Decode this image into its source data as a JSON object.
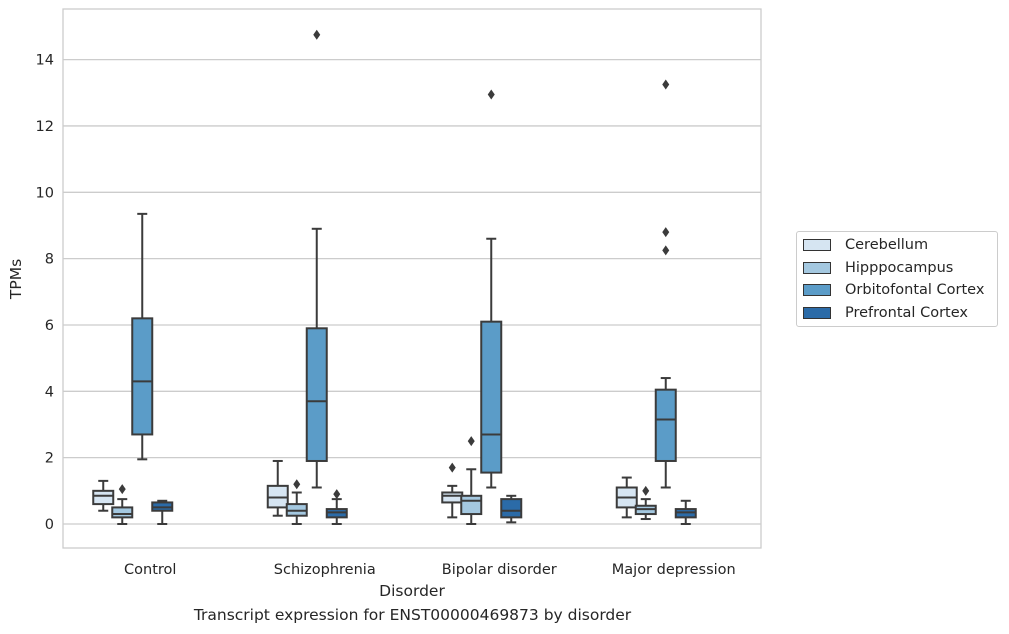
{
  "caption": "Transcript expression for ENST00000469873 by disorder",
  "chart_data": {
    "type": "box",
    "xlabel": "Disorder",
    "ylabel": "TPMs",
    "ylim": [
      -0.7,
      15.5
    ],
    "yticks": [
      0,
      2,
      4,
      6,
      8,
      10,
      12,
      14
    ],
    "grid": "horizontal",
    "legend_position": "right",
    "categories": [
      "Control",
      "Schizophrenia",
      "Bipolar disorder",
      "Major depression"
    ],
    "series": [
      {
        "name": "Cerebellum",
        "color": "#d6e5f2",
        "boxes": [
          {
            "min": 0.4,
            "q1": 0.6,
            "median": 0.85,
            "q3": 1.0,
            "max": 1.3,
            "outliers": []
          },
          {
            "min": 0.25,
            "q1": 0.5,
            "median": 0.8,
            "q3": 1.15,
            "max": 1.9,
            "outliers": []
          },
          {
            "min": 0.2,
            "q1": 0.65,
            "median": 0.85,
            "q3": 0.95,
            "max": 1.15,
            "outliers": [
              1.7
            ]
          },
          {
            "min": 0.2,
            "q1": 0.5,
            "median": 0.8,
            "q3": 1.1,
            "max": 1.4,
            "outliers": []
          }
        ]
      },
      {
        "name": "Hipppocampus",
        "color": "#a4c8e0",
        "boxes": [
          {
            "min": 0.0,
            "q1": 0.2,
            "median": 0.3,
            "q3": 0.5,
            "max": 0.75,
            "outliers": [
              1.05
            ]
          },
          {
            "min": 0.0,
            "q1": 0.25,
            "median": 0.4,
            "q3": 0.6,
            "max": 0.95,
            "outliers": [
              1.2
            ]
          },
          {
            "min": 0.0,
            "q1": 0.3,
            "median": 0.7,
            "q3": 0.85,
            "max": 1.65,
            "outliers": [
              2.5
            ]
          },
          {
            "min": 0.15,
            "q1": 0.3,
            "median": 0.45,
            "q3": 0.55,
            "max": 0.75,
            "outliers": [
              1.0
            ]
          }
        ]
      },
      {
        "name": "Orbitofontal Cortex",
        "color": "#5b9cc8",
        "boxes": [
          {
            "min": 1.95,
            "q1": 2.7,
            "median": 4.3,
            "q3": 6.2,
            "max": 9.35,
            "outliers": []
          },
          {
            "min": 1.1,
            "q1": 1.9,
            "median": 3.7,
            "q3": 5.9,
            "max": 8.9,
            "outliers": [
              14.75
            ]
          },
          {
            "min": 1.1,
            "q1": 1.55,
            "median": 2.7,
            "q3": 6.1,
            "max": 8.6,
            "outliers": [
              12.95
            ]
          },
          {
            "min": 1.1,
            "q1": 1.9,
            "median": 3.15,
            "q3": 4.05,
            "max": 4.4,
            "outliers": [
              8.8,
              8.25,
              13.25
            ]
          }
        ]
      },
      {
        "name": "Prefrontal Cortex",
        "color": "#2b6ba8",
        "boxes": [
          {
            "min": 0.0,
            "q1": 0.4,
            "median": 0.5,
            "q3": 0.65,
            "max": 0.7,
            "outliers": []
          },
          {
            "min": 0.0,
            "q1": 0.2,
            "median": 0.35,
            "q3": 0.45,
            "max": 0.75,
            "outliers": [
              0.9
            ]
          },
          {
            "min": 0.05,
            "q1": 0.2,
            "median": 0.4,
            "q3": 0.75,
            "max": 0.85,
            "outliers": []
          },
          {
            "min": 0.0,
            "q1": 0.2,
            "median": 0.35,
            "q3": 0.45,
            "max": 0.7,
            "outliers": []
          }
        ]
      }
    ]
  }
}
